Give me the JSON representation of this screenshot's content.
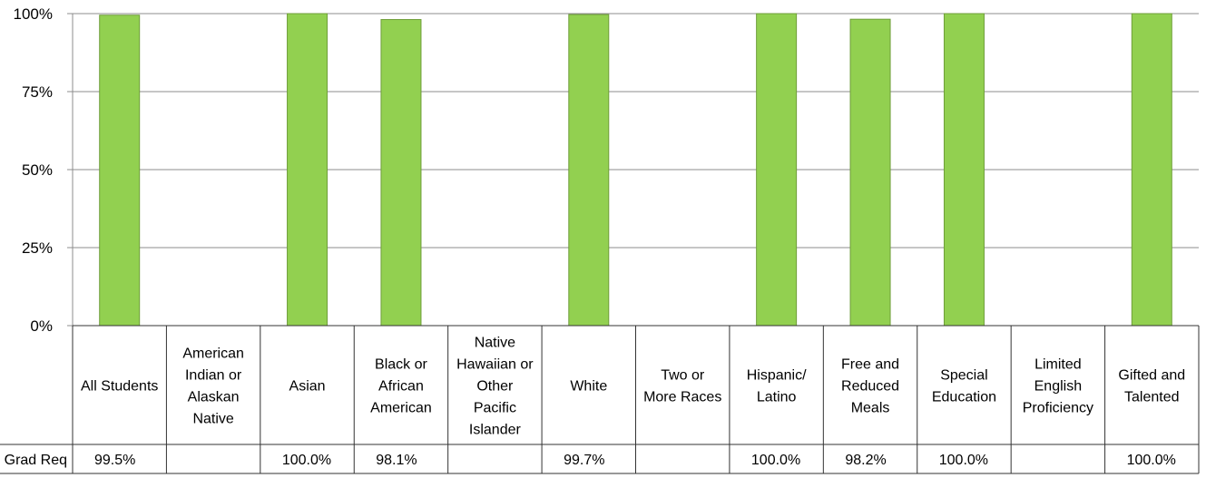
{
  "chart_data": {
    "type": "bar",
    "categories": [
      "All Students",
      "American Indian or Alaskan Native",
      "Asian",
      "Black or African American",
      "Native Hawaiian or Other Pacific Islander",
      "White",
      "Two or More Races",
      "Hispanic/ Latino",
      "Free and Reduced Meals",
      "Special Education",
      "Limited English Proficiency",
      "Gifted and Talented"
    ],
    "category_lines": [
      [
        "All Students"
      ],
      [
        "American",
        "Indian or",
        "Alaskan",
        "Native"
      ],
      [
        "Asian"
      ],
      [
        "Black or",
        "African",
        "American"
      ],
      [
        "Native",
        "Hawaiian or",
        "Other",
        "Pacific",
        "Islander"
      ],
      [
        "White"
      ],
      [
        "Two or",
        "More Races"
      ],
      [
        "Hispanic/",
        "Latino"
      ],
      [
        "Free and",
        "Reduced",
        "Meals"
      ],
      [
        "Special",
        "Education"
      ],
      [
        "Limited",
        "English",
        "Proficiency"
      ],
      [
        "Gifted and",
        "Talented"
      ]
    ],
    "series": [
      {
        "name": "Grad Req",
        "values": [
          99.5,
          null,
          100.0,
          98.1,
          null,
          99.7,
          null,
          100.0,
          98.2,
          100.0,
          null,
          100.0
        ],
        "value_labels": [
          "99.5%",
          "",
          "100.0%",
          "98.1%",
          "",
          "99.7%",
          "",
          "100.0%",
          "98.2%",
          "100.0%",
          "",
          "100.0%"
        ],
        "color": "#92d050"
      }
    ],
    "yticks": [
      "0%",
      "25%",
      "50%",
      "75%",
      "100%"
    ],
    "ylim": [
      0,
      100
    ],
    "grid": true,
    "data_table": true
  }
}
